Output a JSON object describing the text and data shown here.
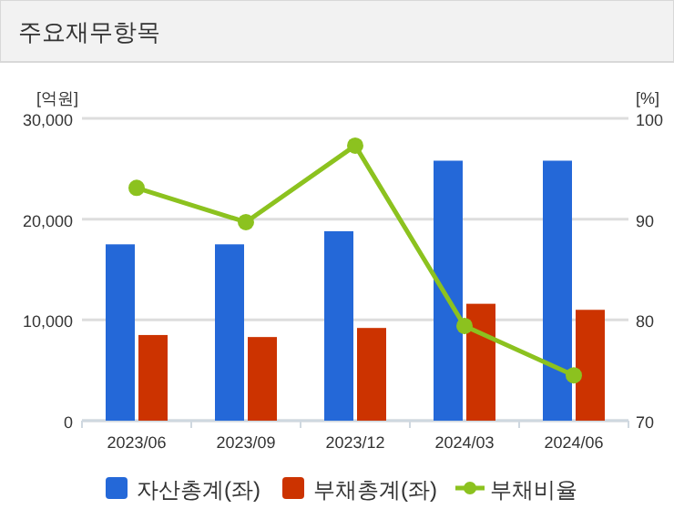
{
  "chart_data": {
    "type": "bar",
    "title": "주요재무항목",
    "ylabel": "[억원]",
    "y2label": "[%]",
    "categories": [
      "2023/06",
      "2023/09",
      "2023/12",
      "2024/03",
      "2024/06"
    ],
    "series": [
      {
        "name": "자산총계(좌)",
        "color": "#2468d8",
        "values": [
          17500,
          17500,
          18800,
          25800,
          25800
        ]
      },
      {
        "name": "부채총계(좌)",
        "color": "#cc3300",
        "values": [
          8500,
          8300,
          9200,
          11600,
          11000
        ]
      },
      {
        "name": "부채비율",
        "type": "line",
        "axis": "y2",
        "color": "#8cc21f",
        "marker": "circle",
        "values": [
          93.1,
          89.7,
          97.3,
          79.4,
          74.5
        ]
      }
    ],
    "ylim": [
      0,
      30000
    ],
    "yticks": [
      {
        "value": 0,
        "label": "0"
      },
      {
        "value": 10000,
        "label": "10,000"
      },
      {
        "value": 20000,
        "label": "20,000"
      },
      {
        "value": 30000,
        "label": "30,000"
      }
    ],
    "y2lim": [
      70,
      100
    ],
    "y2ticks": [
      70,
      80,
      90,
      100
    ],
    "grid": "y",
    "legend": "bottom"
  }
}
